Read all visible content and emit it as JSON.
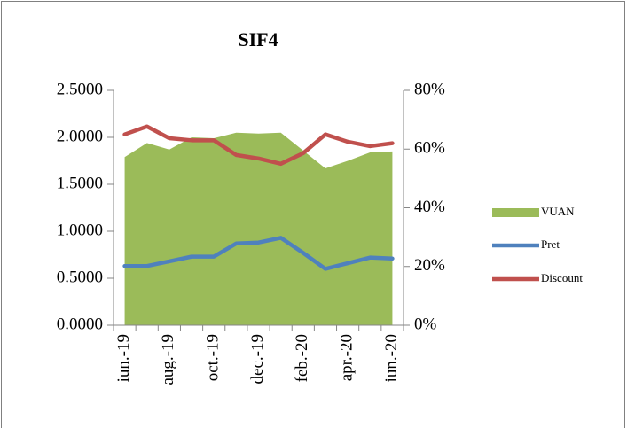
{
  "chart_data": {
    "type": "combo",
    "title": "SIF4",
    "categories": [
      "iun.-19",
      null,
      "aug.-19",
      null,
      "oct.-19",
      null,
      "dec.-19",
      null,
      "feb.-20",
      null,
      "apr.-20",
      null,
      "iun.-20"
    ],
    "series": [
      {
        "name": "VUAN",
        "type": "area",
        "color": "#9bbb59",
        "values": [
          1.79,
          1.94,
          1.87,
          2.0,
          1.99,
          2.05,
          2.04,
          2.05,
          1.86,
          1.67,
          1.75,
          1.84,
          1.85
        ]
      },
      {
        "name": "Pret",
        "type": "line",
        "color": "#4f81bd",
        "values": [
          0.63,
          0.63,
          0.68,
          0.73,
          0.73,
          0.87,
          0.88,
          0.93,
          0.77,
          0.6,
          0.66,
          0.72,
          0.71
        ]
      },
      {
        "name": "Discount",
        "type": "line",
        "color": "#c0504d",
        "axis": "y2",
        "values": [
          65,
          67.7,
          63.7,
          63,
          63,
          58,
          56.8,
          55,
          58.6,
          65,
          62.5,
          61,
          62
        ]
      }
    ],
    "ylim": [
      0,
      2.5
    ],
    "yticks": [
      {
        "value": 0,
        "label": "0.0000"
      },
      {
        "value": 0.5,
        "label": "0.5000"
      },
      {
        "value": 1,
        "label": "1.0000"
      },
      {
        "value": 1.5,
        "label": "1.5000"
      },
      {
        "value": 2,
        "label": "2.0000"
      },
      {
        "value": 2.5,
        "label": "2.5000"
      }
    ],
    "y2lim": [
      0,
      80
    ],
    "y2ticks": [
      {
        "value": 0,
        "label": "0%"
      },
      {
        "value": 20,
        "label": "20%"
      },
      {
        "value": 40,
        "label": "40%"
      },
      {
        "value": 60,
        "label": "60%"
      },
      {
        "value": 80,
        "label": "80%"
      }
    ],
    "legend": "right"
  }
}
